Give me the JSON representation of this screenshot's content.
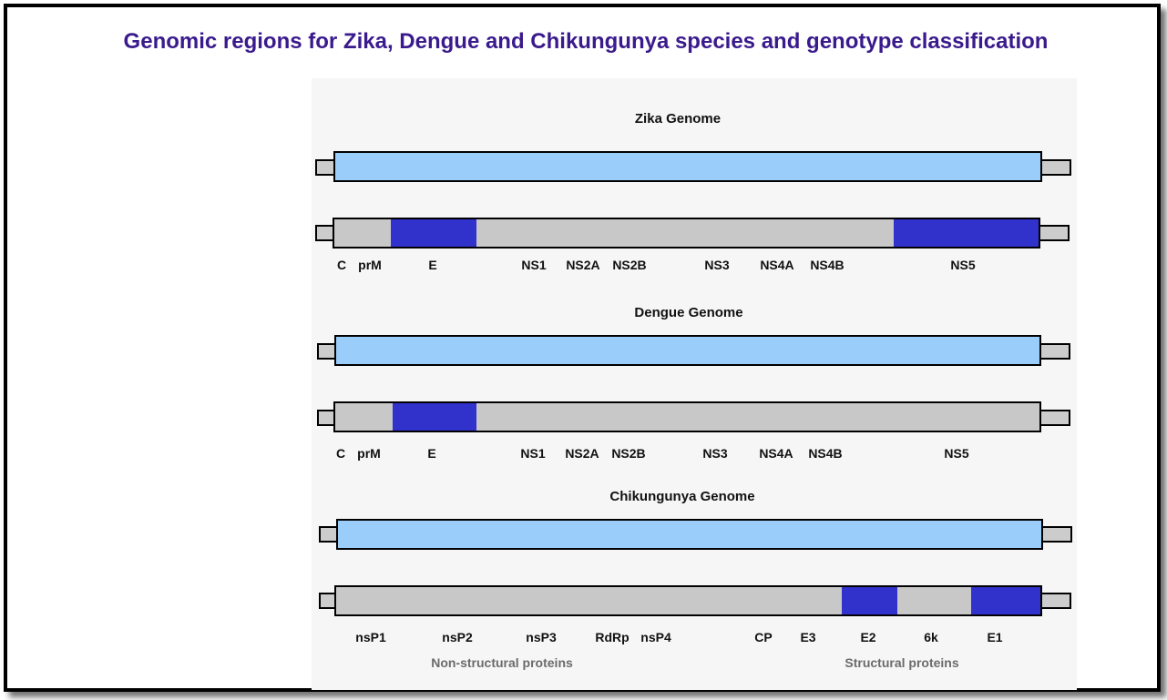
{
  "title": "Genomic regions for Zika, Dengue and Chikungunya species and genotype classification",
  "colors": {
    "title": "#3a1a8c",
    "genome_bar": "#9bcdfb",
    "gene_bar": "#c8c8c8",
    "highlight": "#3131cc"
  },
  "genomes": [
    {
      "title": "Zika Genome",
      "genes": [
        "C",
        "prM",
        "E",
        "NS1",
        "NS2A",
        "NS2B",
        "NS3",
        "NS4A",
        "NS4B",
        "NS5"
      ],
      "highlighted_regions": [
        "E",
        "NS5"
      ]
    },
    {
      "title": "Dengue Genome",
      "genes": [
        "C",
        "prM",
        "E",
        "NS1",
        "NS2A",
        "NS2B",
        "NS3",
        "NS4A",
        "NS4B",
        "NS5"
      ],
      "highlighted_regions": [
        "E"
      ]
    },
    {
      "title": "Chikungunya Genome",
      "genes": [
        "nsP1",
        "nsP2",
        "nsP3",
        "RdRp",
        "nsP4",
        "CP",
        "E3",
        "E2",
        "6k",
        "E1"
      ],
      "highlighted_regions": [
        "E2",
        "E1"
      ],
      "categories": [
        "Non-structural proteins",
        "Structural proteins"
      ]
    }
  ]
}
